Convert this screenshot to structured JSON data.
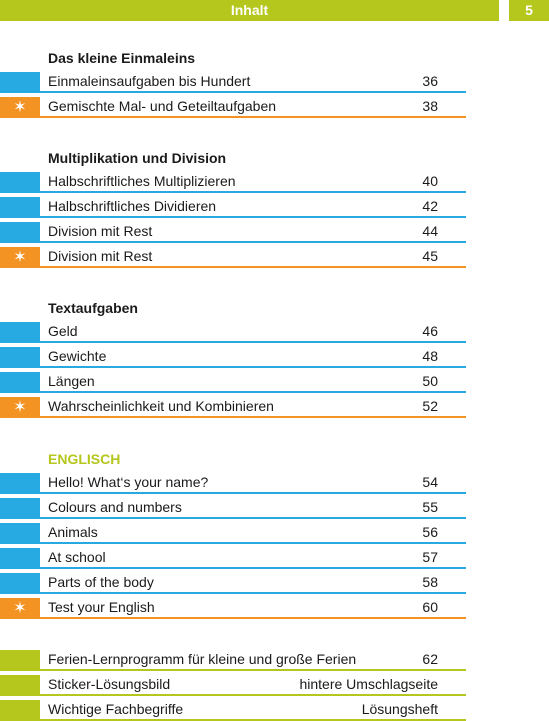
{
  "header": {
    "title": "Inhalt",
    "page_number": "5"
  },
  "colors": {
    "blue": "#27aae1",
    "orange": "#f39324",
    "green": "#b5c61d",
    "star": "#ffffff"
  },
  "icons": {
    "star": "✶"
  },
  "sections": [
    {
      "title": "Das kleine Einmaleins",
      "items": [
        {
          "label": "Einmaleinsaufgaben bis Hundert",
          "page": "36",
          "marker": "blue"
        },
        {
          "label": "Gemischte Mal- und Geteiltaufgaben",
          "page": "38",
          "marker": "orange"
        }
      ]
    },
    {
      "title": "Multiplikation und Division",
      "items": [
        {
          "label": "Halbschriftliches Multiplizieren",
          "page": "40",
          "marker": "blue"
        },
        {
          "label": "Halbschriftliches Dividieren",
          "page": "42",
          "marker": "blue"
        },
        {
          "label": "Division mit Rest",
          "page": "44",
          "marker": "blue"
        },
        {
          "label": "Division mit Rest",
          "page": "45",
          "marker": "orange"
        }
      ]
    },
    {
      "title": "Textaufgaben",
      "items": [
        {
          "label": "Geld",
          "page": "46",
          "marker": "blue"
        },
        {
          "label": "Gewichte",
          "page": "48",
          "marker": "blue"
        },
        {
          "label": "Längen",
          "page": "50",
          "marker": "blue"
        },
        {
          "label": "Wahrscheinlichkeit und Kombinieren",
          "page": "52",
          "marker": "orange"
        }
      ]
    },
    {
      "title": "ENGLISCH",
      "accent": true,
      "items": [
        {
          "label": "Hello! What‘s your name?",
          "page": "54",
          "marker": "blue"
        },
        {
          "label": "Colours and numbers",
          "page": "55",
          "marker": "blue"
        },
        {
          "label": "Animals",
          "page": "56",
          "marker": "blue"
        },
        {
          "label": "At school",
          "page": "57",
          "marker": "blue"
        },
        {
          "label": "Parts of the body",
          "page": "58",
          "marker": "blue"
        },
        {
          "label": "Test your English",
          "page": "60",
          "marker": "orange"
        }
      ]
    },
    {
      "title": "",
      "items": [
        {
          "label": "Ferien-Lernprogramm für kleine und große Ferien",
          "page": "62",
          "marker": "green"
        },
        {
          "label": "Sticker-Lösungsbild",
          "page": "hintere Umschlagseite",
          "marker": "green"
        },
        {
          "label": "Wichtige Fachbegriffe",
          "page": "Lösungsheft",
          "marker": "green"
        }
      ]
    }
  ]
}
